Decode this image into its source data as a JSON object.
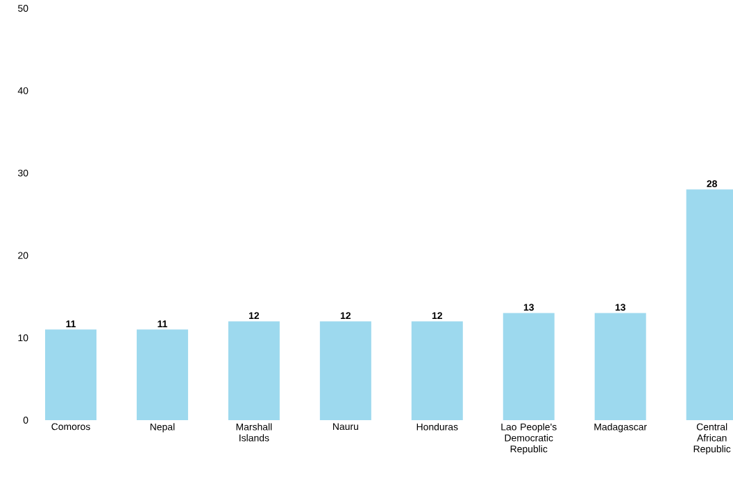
{
  "chart_data": {
    "type": "bar",
    "categories": [
      "Comoros",
      "Nepal",
      "Marshall Islands",
      "Nauru",
      "Honduras",
      "Lao People's Democratic Republic",
      "Madagascar",
      "Central African Republic"
    ],
    "values": [
      11,
      11,
      12,
      12,
      12,
      13,
      13,
      28
    ],
    "color": "#9dd9ee",
    "ylim": [
      0,
      50
    ],
    "yticks": [
      0,
      10,
      20,
      30,
      40,
      50
    ],
    "data_labels": true,
    "grid": false
  }
}
